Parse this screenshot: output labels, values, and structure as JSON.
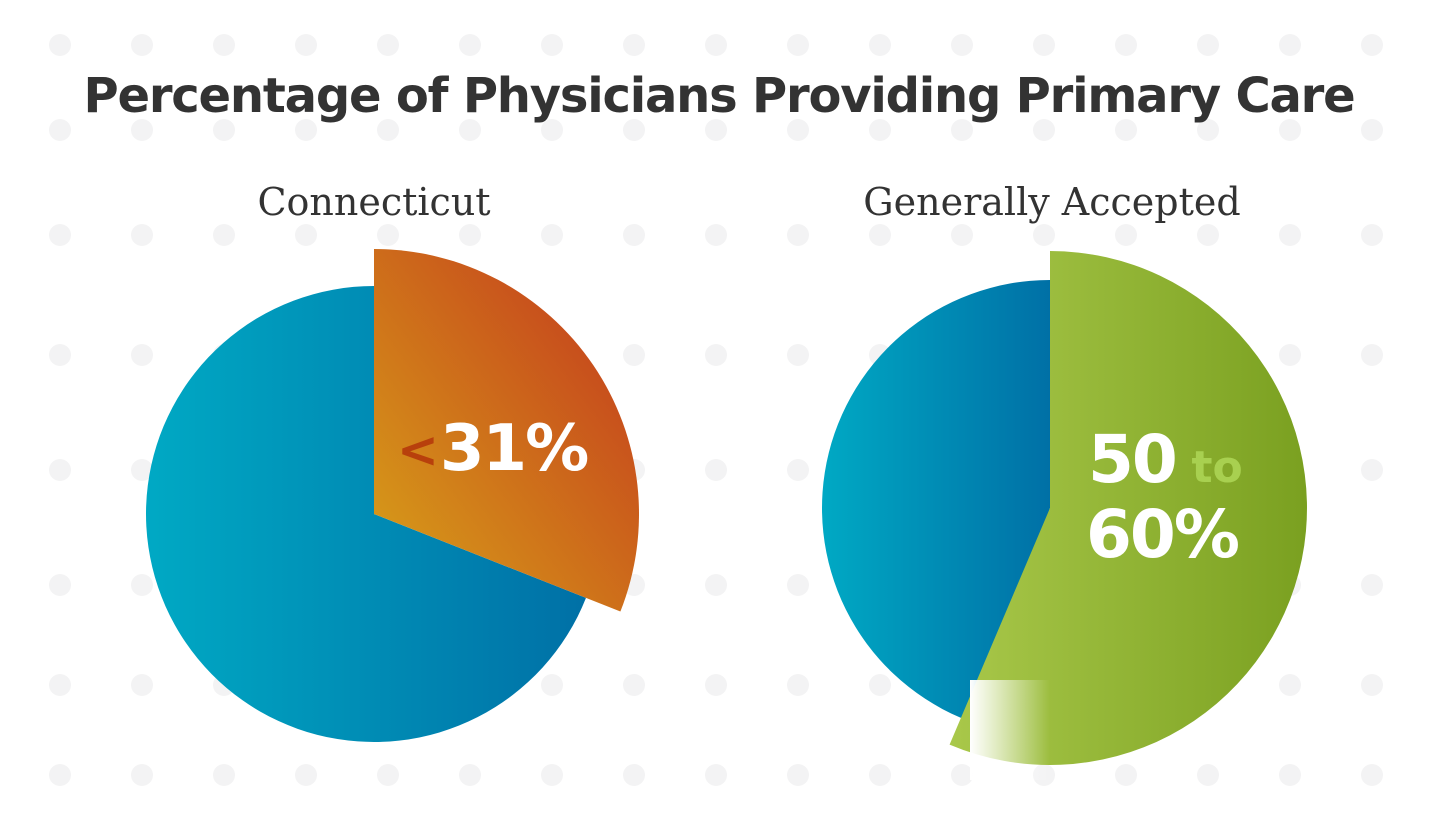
{
  "title": "Percentage of Physicians Providing Primary Care",
  "colors": {
    "title": "#333333",
    "blue_light": "#00a9c4",
    "blue_dark": "#0070a6",
    "orange_light": "#d8a418",
    "orange_dark": "#c8501c",
    "orange_text": "#b8400c",
    "green_light": "#a9c84a",
    "green_dark": "#7aa020",
    "green_text": "#a8d050",
    "white": "#ffffff"
  },
  "chart_data": [
    {
      "type": "pie",
      "title": "Connecticut",
      "slices": [
        {
          "label": "<31%",
          "value": 31
        },
        {
          "label": "",
          "value": 69
        }
      ],
      "annotation": {
        "prefix": "<",
        "value": "31%"
      }
    },
    {
      "type": "pie",
      "title": "Generally Accepted",
      "slices": [
        {
          "label": "50 to 60%",
          "value": 55
        },
        {
          "label": "",
          "value": 45
        }
      ],
      "annotation": {
        "line1_num": "50",
        "line1_word": "to",
        "line2": "60%"
      }
    }
  ]
}
